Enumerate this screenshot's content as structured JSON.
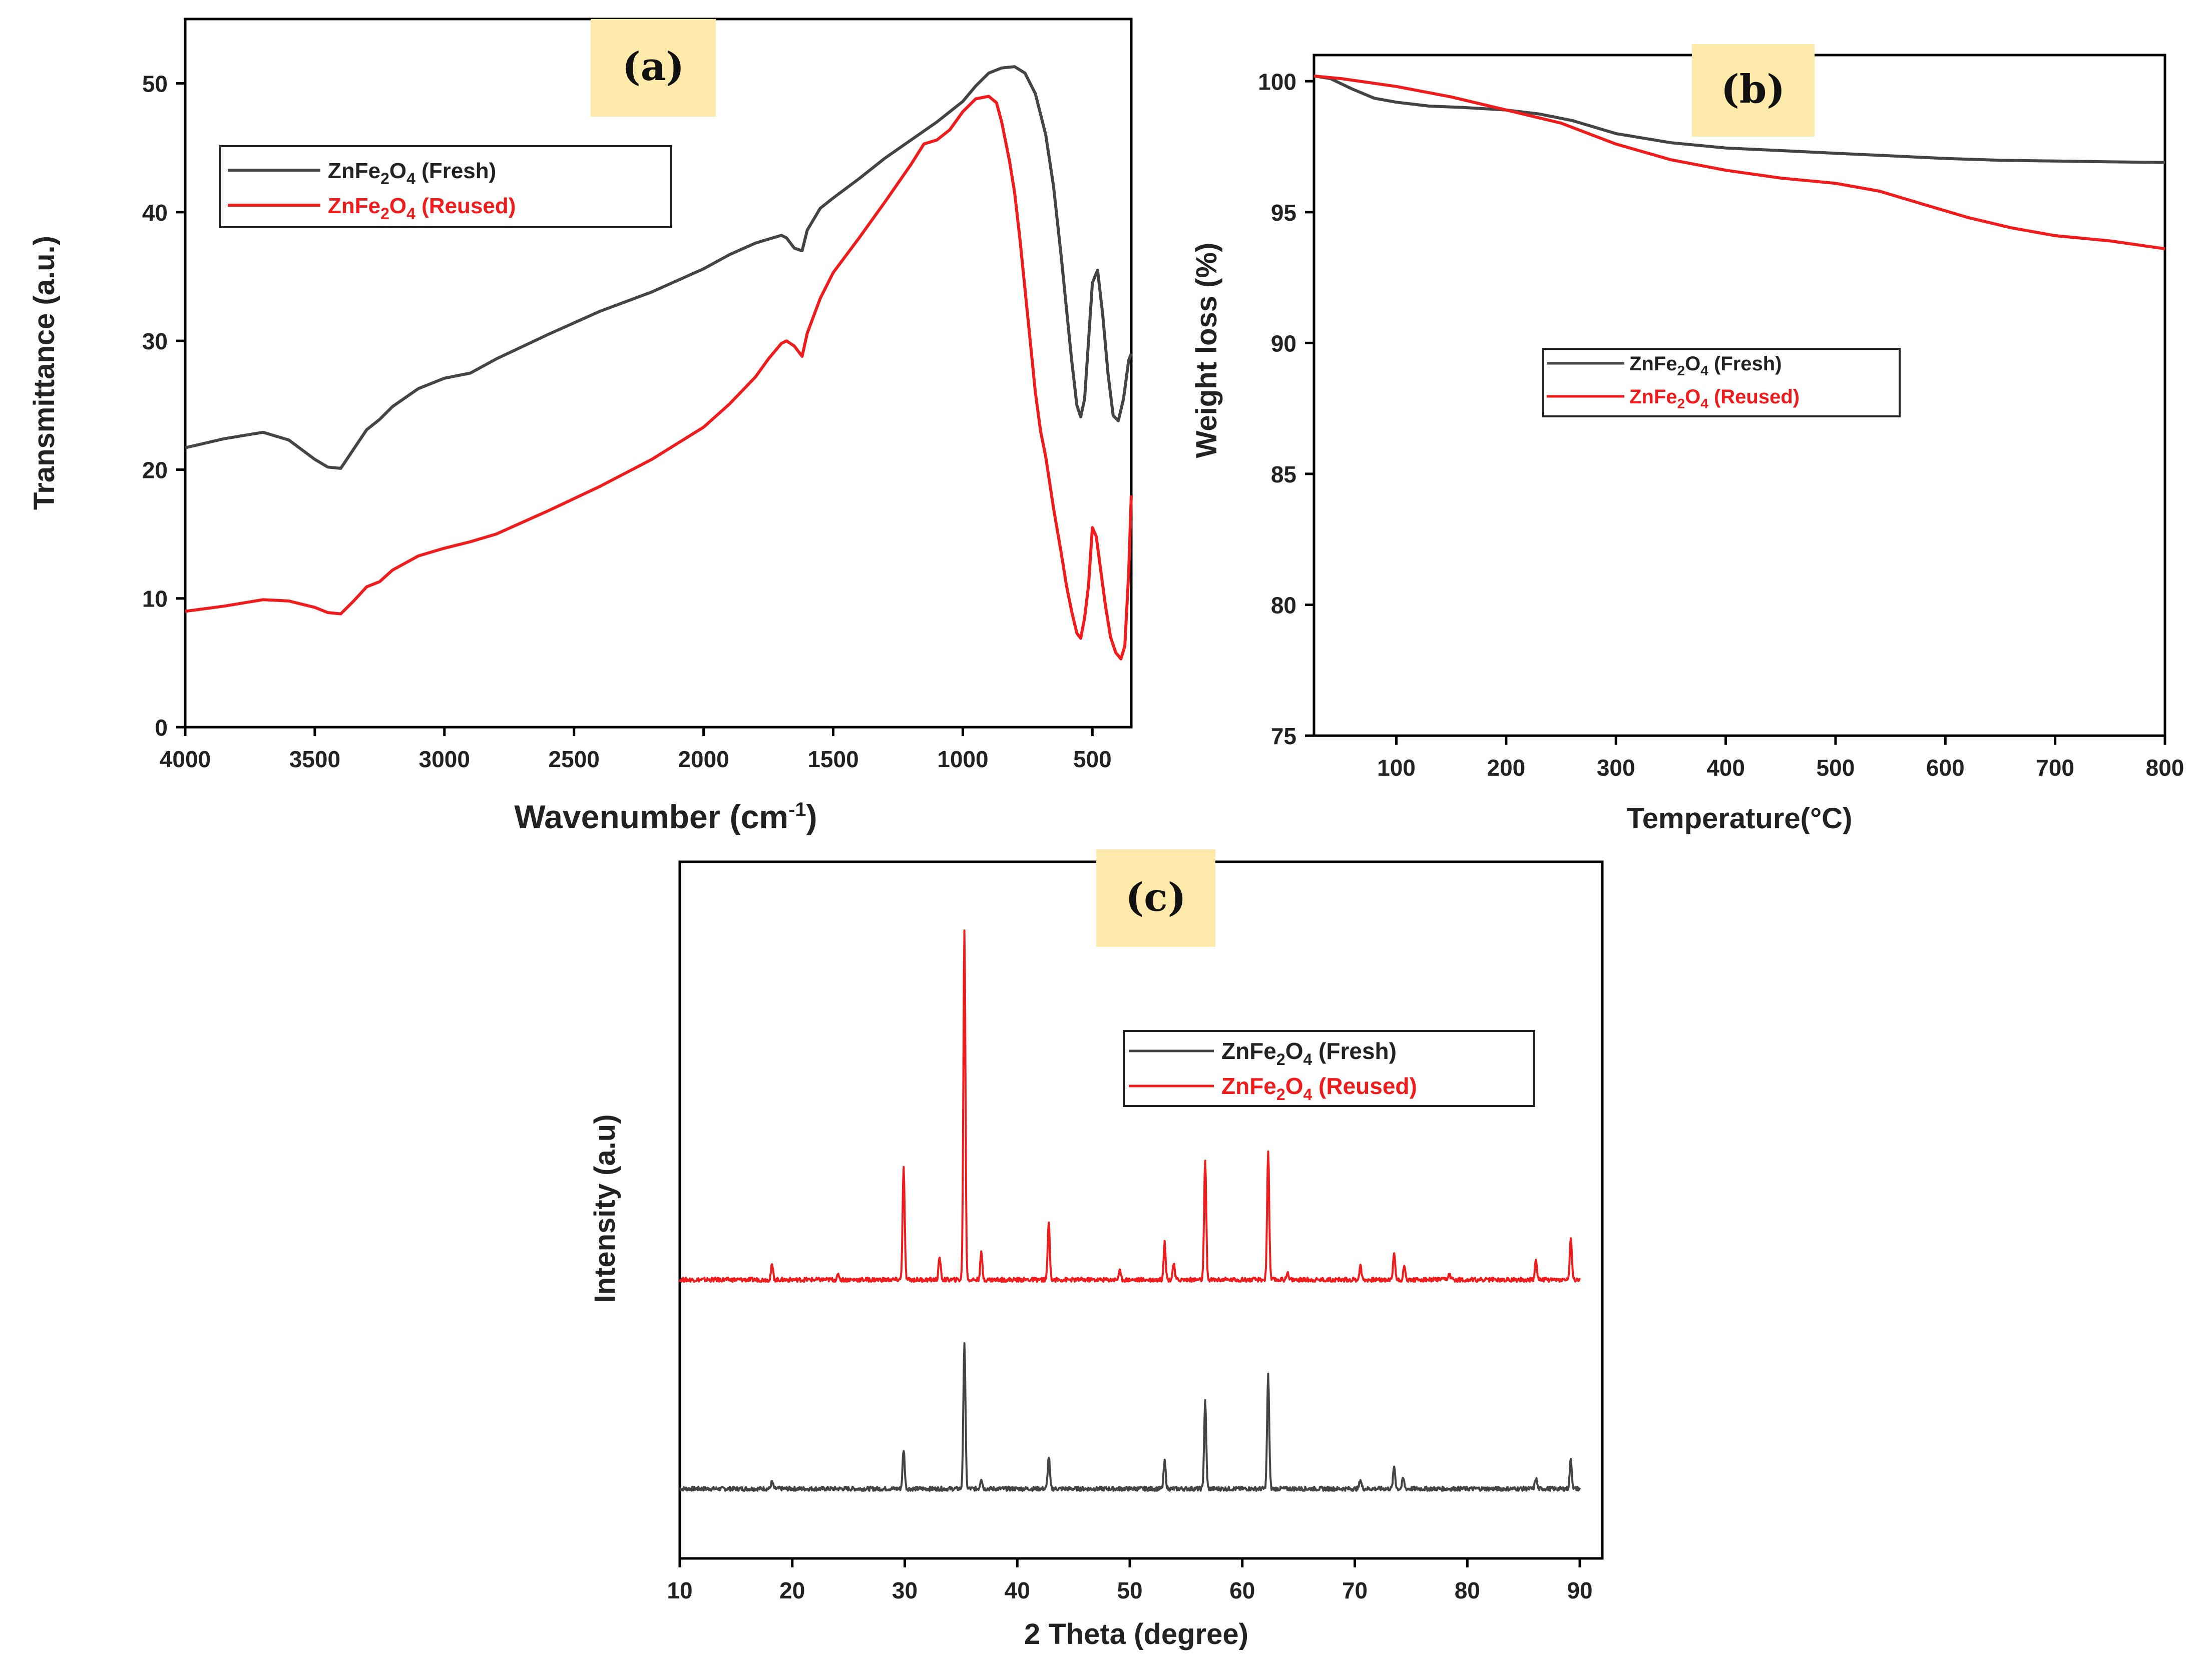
{
  "chart_data": [
    {
      "type": "line",
      "panel_label": "(a)",
      "xlabel": "Wavenumber (cm",
      "xlabel_sup": "-1",
      "xlabel_end": ")",
      "ylabel": "Transmittance (a.u.)",
      "xlim": [
        4000,
        350
      ],
      "ylim": [
        0,
        55
      ],
      "xticks": [
        4000,
        3500,
        3000,
        2500,
        2000,
        1500,
        1000,
        500
      ],
      "yticks": [
        0,
        10,
        20,
        30,
        40,
        50
      ],
      "legend": {
        "position": "top-left",
        "entries": [
          "ZnFe2O4 (Fresh)",
          "ZnFe2O4 (Reused)"
        ]
      },
      "series": [
        {
          "name": "ZnFe2O4 (Fresh)",
          "color": "#444444",
          "x": [
            4000,
            3850,
            3700,
            3600,
            3500,
            3450,
            3400,
            3350,
            3300,
            3250,
            3200,
            3100,
            3000,
            2900,
            2800,
            2600,
            2400,
            2200,
            2000,
            1900,
            1800,
            1750,
            1700,
            1680,
            1650,
            1620,
            1600,
            1550,
            1500,
            1400,
            1300,
            1200,
            1100,
            1000,
            950,
            900,
            850,
            800,
            760,
            720,
            680,
            650,
            620,
            600,
            580,
            560,
            545,
            530,
            515,
            500,
            480,
            460,
            440,
            420,
            400,
            380,
            360,
            350
          ],
          "y": [
            21.7,
            22.4,
            22.9,
            22.3,
            20.8,
            20.2,
            20.1,
            21.6,
            23.1,
            23.9,
            24.9,
            26.3,
            27.1,
            27.5,
            28.6,
            30.5,
            32.3,
            33.8,
            35.6,
            36.7,
            37.6,
            37.9,
            38.2,
            38.0,
            37.2,
            37.0,
            38.6,
            40.3,
            41.1,
            42.6,
            44.2,
            45.6,
            47.0,
            48.6,
            49.8,
            50.8,
            51.2,
            51.3,
            50.8,
            49.2,
            46.0,
            42.0,
            36.5,
            32.5,
            28.5,
            25.0,
            24.1,
            25.5,
            30.0,
            34.5,
            35.5,
            32.0,
            27.5,
            24.2,
            23.8,
            25.5,
            28.5,
            29.0
          ]
        },
        {
          "name": "ZnFe2O4 (Reused)",
          "color": "#ee1c1c",
          "x": [
            4000,
            3850,
            3700,
            3600,
            3500,
            3450,
            3400,
            3350,
            3300,
            3250,
            3200,
            3100,
            3000,
            2900,
            2800,
            2600,
            2400,
            2200,
            2000,
            1900,
            1800,
            1750,
            1700,
            1680,
            1650,
            1620,
            1600,
            1550,
            1500,
            1400,
            1300,
            1200,
            1150,
            1100,
            1050,
            1000,
            950,
            900,
            870,
            850,
            820,
            800,
            780,
            760,
            740,
            720,
            700,
            680,
            650,
            620,
            600,
            580,
            560,
            545,
            530,
            515,
            500,
            485,
            470,
            450,
            430,
            410,
            390,
            375,
            360,
            350
          ],
          "y": [
            9.0,
            9.4,
            9.9,
            9.8,
            9.3,
            8.9,
            8.8,
            9.8,
            10.9,
            11.3,
            12.2,
            13.3,
            13.9,
            14.4,
            15.0,
            16.8,
            18.7,
            20.8,
            23.3,
            25.1,
            27.2,
            28.6,
            29.8,
            30.0,
            29.6,
            28.8,
            30.6,
            33.3,
            35.3,
            38.0,
            40.8,
            43.7,
            45.3,
            45.6,
            46.4,
            47.8,
            48.8,
            49.0,
            48.5,
            47.0,
            44.0,
            41.5,
            38.0,
            34.0,
            30.0,
            26.0,
            23.0,
            21.0,
            17.0,
            13.5,
            11.0,
            9.0,
            7.3,
            6.9,
            8.5,
            11.0,
            15.5,
            14.8,
            12.5,
            9.5,
            7.0,
            5.8,
            5.3,
            6.3,
            12.0,
            18.0
          ]
        }
      ]
    },
    {
      "type": "line",
      "panel_label": "(b)",
      "xlabel": "Temperature(°C)",
      "ylabel": "Weight loss (%)",
      "xlim": [
        25,
        800
      ],
      "ylim": [
        75,
        101
      ],
      "xticks": [
        100,
        200,
        300,
        400,
        500,
        600,
        700,
        800
      ],
      "yticks": [
        75,
        80,
        85,
        90,
        95,
        100
      ],
      "legend": {
        "position": "center",
        "entries": [
          "ZnFe2O4 (Fresh)",
          "ZnFe2O4 (Reused)"
        ]
      },
      "series": [
        {
          "name": "ZnFe2O4 (Fresh)",
          "color": "#444444",
          "x": [
            25,
            40,
            60,
            80,
            100,
            130,
            160,
            200,
            230,
            260,
            300,
            350,
            400,
            450,
            500,
            550,
            600,
            650,
            700,
            750,
            800
          ],
          "y": [
            100.2,
            100.1,
            99.7,
            99.35,
            99.2,
            99.05,
            99.0,
            98.9,
            98.75,
            98.5,
            98.0,
            97.65,
            97.45,
            97.35,
            97.25,
            97.15,
            97.05,
            96.98,
            96.95,
            96.92,
            96.9
          ]
        },
        {
          "name": "ZnFe2O4 (Reused)",
          "color": "#ee1c1c",
          "x": [
            25,
            50,
            100,
            150,
            200,
            250,
            300,
            350,
            400,
            450,
            500,
            540,
            580,
            620,
            660,
            700,
            750,
            800
          ],
          "y": [
            100.2,
            100.1,
            99.8,
            99.4,
            98.9,
            98.4,
            97.6,
            97.0,
            96.6,
            96.3,
            96.1,
            95.8,
            95.3,
            94.8,
            94.4,
            94.1,
            93.9,
            93.6
          ]
        }
      ]
    },
    {
      "type": "line",
      "panel_label": "(c)",
      "xlabel": "2 Theta (degree)",
      "ylabel": "Intensity (a.u)",
      "xlim": [
        10,
        92
      ],
      "ylim": [
        0,
        100
      ],
      "xticks": [
        10,
        20,
        30,
        40,
        50,
        60,
        70,
        80,
        90
      ],
      "yticks": [],
      "legend": {
        "position": "top-right",
        "entries": [
          "ZnFe2O4 (Fresh)",
          "ZnFe2O4 (Reused)"
        ]
      },
      "series": [
        {
          "name": "ZnFe2O4 (Fresh)",
          "color": "#444444",
          "baseline": 10.0,
          "x_range": [
            10,
            90
          ],
          "peaks": [
            {
              "x": 18.2,
              "h": 1.0
            },
            {
              "x": 29.9,
              "h": 5.6
            },
            {
              "x": 35.3,
              "h": 21.0
            },
            {
              "x": 36.8,
              "h": 1.5
            },
            {
              "x": 42.8,
              "h": 4.6
            },
            {
              "x": 53.1,
              "h": 3.9
            },
            {
              "x": 56.7,
              "h": 12.5
            },
            {
              "x": 62.3,
              "h": 16.3
            },
            {
              "x": 70.5,
              "h": 1.3
            },
            {
              "x": 73.5,
              "h": 3.2
            },
            {
              "x": 74.3,
              "h": 1.5
            },
            {
              "x": 86.1,
              "h": 1.5
            },
            {
              "x": 89.2,
              "h": 4.2
            }
          ]
        },
        {
          "name": "ZnFe2O4 (Reused)",
          "color": "#ee1c1c",
          "baseline": 40.0,
          "x_range": [
            10,
            90
          ],
          "peaks": [
            {
              "x": 18.2,
              "h": 2.1
            },
            {
              "x": 24.1,
              "h": 0.7
            },
            {
              "x": 29.9,
              "h": 16.0
            },
            {
              "x": 33.1,
              "h": 3.2
            },
            {
              "x": 35.3,
              "h": 50.0
            },
            {
              "x": 36.8,
              "h": 3.8
            },
            {
              "x": 42.8,
              "h": 8.2
            },
            {
              "x": 49.1,
              "h": 1.3
            },
            {
              "x": 53.1,
              "h": 5.3
            },
            {
              "x": 53.9,
              "h": 2.3
            },
            {
              "x": 56.7,
              "h": 17.2
            },
            {
              "x": 62.3,
              "h": 18.5
            },
            {
              "x": 64.0,
              "h": 1.0
            },
            {
              "x": 70.5,
              "h": 2.0
            },
            {
              "x": 73.5,
              "h": 3.9
            },
            {
              "x": 74.4,
              "h": 1.8
            },
            {
              "x": 78.4,
              "h": 0.8
            },
            {
              "x": 86.1,
              "h": 2.8
            },
            {
              "x": 89.2,
              "h": 5.8
            }
          ]
        }
      ]
    }
  ]
}
